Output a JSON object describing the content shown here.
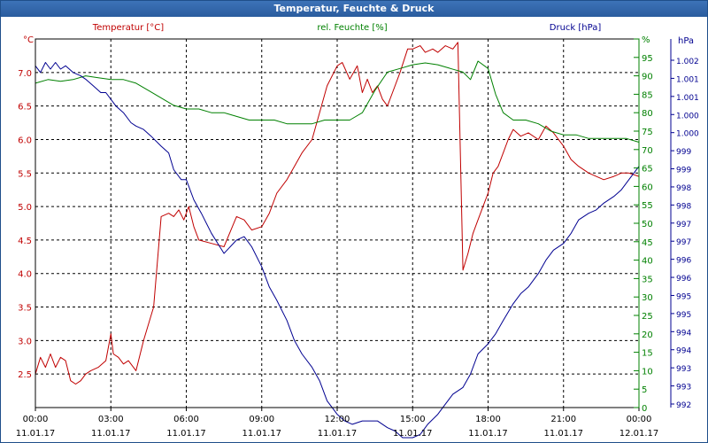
{
  "window": {
    "title": "Temperatur, Feuchte & Druck"
  },
  "colors": {
    "temperature": "#c00000",
    "humidity": "#008000",
    "pressure": "#000090",
    "axis": "#000000",
    "grid": "#000000"
  },
  "chart_data": {
    "type": "line",
    "title": "Temperatur, Feuchte & Druck",
    "grid": true,
    "x_ticks": [
      {
        "time": "00:00",
        "date": "11.01.17",
        "hour": 0
      },
      {
        "time": "03:00",
        "date": "11.01.17",
        "hour": 3
      },
      {
        "time": "06:00",
        "date": "11.01.17",
        "hour": 6
      },
      {
        "time": "09:00",
        "date": "11.01.17",
        "hour": 9
      },
      {
        "time": "12:00",
        "date": "11.01.17",
        "hour": 12
      },
      {
        "time": "15:00",
        "date": "11.01.17",
        "hour": 15
      },
      {
        "time": "18:00",
        "date": "11.01.17",
        "hour": 18
      },
      {
        "time": "21:00",
        "date": "11.01.17",
        "hour": 21
      },
      {
        "time": "00:00",
        "date": "12.01.17",
        "hour": 24
      }
    ],
    "xlim": [
      0,
      24
    ],
    "axes": {
      "temperature": {
        "label": "Temperatur [°C]",
        "unit": "°C",
        "ylim": [
          2.0,
          7.5
        ],
        "ticks": [
          "2.5",
          "3.0",
          "3.5",
          "4.0",
          "4.5",
          "5.0",
          "5.5",
          "6.0",
          "6.5",
          "7.0"
        ]
      },
      "humidity": {
        "label": "rel. Feuchte [%]",
        "unit": "%",
        "ylim": [
          0,
          100
        ],
        "ticks": [
          "0",
          "5",
          "10",
          "15",
          "20",
          "25",
          "30",
          "35",
          "40",
          "45",
          "50",
          "55",
          "60",
          "65",
          "70",
          "75",
          "80",
          "85",
          "90",
          "95",
          "%"
        ]
      },
      "pressure": {
        "label": "Druck [hPa]",
        "unit": "hPa",
        "ylim": [
          992,
          1003
        ],
        "ticks": [
          "992",
          "993",
          "993",
          "994",
          "994",
          "995",
          "995",
          "996",
          "996",
          "997",
          "997",
          "998",
          "998",
          "999",
          "999",
          "1.000",
          "1.000",
          "1.001",
          "1.001",
          "1.002"
        ]
      }
    },
    "series": [
      {
        "name": "Temperatur [°C]",
        "axis": "temperature",
        "color": "#c00000",
        "x": [
          0,
          0.2,
          0.4,
          0.6,
          0.8,
          1.0,
          1.2,
          1.4,
          1.6,
          1.8,
          2.0,
          2.2,
          2.5,
          2.8,
          3.0,
          3.1,
          3.3,
          3.5,
          3.7,
          4.0,
          4.3,
          4.7,
          5.0,
          5.3,
          5.5,
          5.7,
          5.9,
          6.1,
          6.3,
          6.5,
          7.0,
          7.5,
          8.0,
          8.3,
          8.6,
          9.0,
          9.3,
          9.6,
          10.0,
          10.3,
          10.6,
          11.0,
          11.3,
          11.6,
          12.0,
          12.2,
          12.5,
          12.8,
          13.0,
          13.2,
          13.4,
          13.6,
          13.8,
          14.0,
          14.2,
          14.5,
          14.8,
          15.0,
          15.3,
          15.5,
          15.8,
          16.0,
          16.3,
          16.6,
          16.8,
          17.0,
          17.2,
          17.4,
          17.6,
          17.8,
          18.0,
          18.2,
          18.4,
          18.6,
          18.8,
          19.0,
          19.3,
          19.6,
          20.0,
          20.3,
          20.6,
          21.0,
          21.3,
          21.6,
          22.0,
          22.3,
          22.6,
          23.0,
          23.3,
          23.6,
          24.0
        ],
        "y": [
          2.5,
          2.75,
          2.6,
          2.8,
          2.6,
          2.75,
          2.7,
          2.4,
          2.35,
          2.4,
          2.5,
          2.55,
          2.6,
          2.7,
          3.1,
          2.8,
          2.75,
          2.65,
          2.7,
          2.55,
          3.0,
          3.5,
          4.85,
          4.9,
          4.85,
          4.95,
          4.8,
          5.0,
          4.7,
          4.5,
          4.45,
          4.4,
          4.85,
          4.8,
          4.65,
          4.7,
          4.9,
          5.2,
          5.4,
          5.6,
          5.8,
          6.0,
          6.4,
          6.8,
          7.1,
          7.15,
          6.9,
          7.1,
          6.7,
          6.9,
          6.7,
          6.8,
          6.6,
          6.5,
          6.7,
          7.0,
          7.35,
          7.35,
          7.4,
          7.3,
          7.35,
          7.3,
          7.4,
          7.35,
          7.45,
          4.05,
          4.3,
          4.6,
          4.8,
          5.0,
          5.2,
          5.5,
          5.6,
          5.8,
          6.0,
          6.15,
          6.05,
          6.1,
          6.0,
          6.2,
          6.1,
          5.9,
          5.7,
          5.6,
          5.5,
          5.45,
          5.4,
          5.45,
          5.5,
          5.5,
          5.45
        ]
      },
      {
        "name": "rel. Feuchte [%]",
        "axis": "humidity",
        "color": "#008000",
        "x": [
          0,
          0.5,
          1.0,
          1.5,
          2.0,
          2.5,
          3.0,
          3.5,
          4.0,
          4.5,
          5.0,
          5.5,
          6.0,
          6.5,
          7.0,
          7.5,
          8.0,
          8.5,
          9.0,
          9.5,
          10.0,
          10.5,
          11.0,
          11.5,
          12.0,
          12.5,
          13.0,
          13.5,
          14.0,
          14.5,
          15.0,
          15.5,
          16.0,
          16.5,
          17.0,
          17.3,
          17.6,
          18.0,
          18.3,
          18.6,
          19.0,
          19.5,
          20.0,
          20.5,
          21.0,
          21.5,
          22.0,
          22.5,
          23.0,
          23.5,
          24.0
        ],
        "y": [
          88,
          89,
          88.5,
          89,
          90,
          89.5,
          89,
          89,
          88,
          86,
          84,
          82,
          81,
          81,
          80,
          80,
          79,
          78,
          78,
          78,
          77,
          77,
          77,
          78,
          78,
          78,
          80,
          86,
          91,
          92,
          93,
          93.5,
          93,
          92,
          91,
          89,
          94,
          92,
          85,
          80,
          78,
          78,
          77,
          75,
          74,
          74,
          73,
          73,
          73,
          73,
          72
        ]
      },
      {
        "name": "Druck [hPa]",
        "axis": "pressure",
        "color": "#000090",
        "x": [
          0,
          0.2,
          0.4,
          0.6,
          0.8,
          1.0,
          1.2,
          1.5,
          1.8,
          2.0,
          2.3,
          2.6,
          2.8,
          3.0,
          3.2,
          3.5,
          3.8,
          4.0,
          4.3,
          4.6,
          5.0,
          5.3,
          5.5,
          5.8,
          6.0,
          6.3,
          6.6,
          7.0,
          7.5,
          8.0,
          8.3,
          8.6,
          9.0,
          9.3,
          9.6,
          10.0,
          10.3,
          10.6,
          11.0,
          11.3,
          11.6,
          12.0,
          12.3,
          12.6,
          13.0,
          13.3,
          13.6,
          14.0,
          14.3,
          14.6,
          15.0,
          15.3,
          15.6,
          16.0,
          16.3,
          16.6,
          17.0,
          17.3,
          17.6,
          18.0,
          18.3,
          18.6,
          19.0,
          19.3,
          19.6,
          20.0,
          20.3,
          20.6,
          21.0,
          21.3,
          21.6,
          22.0,
          22.3,
          22.6,
          23.0,
          23.3,
          23.6,
          24.0
        ],
        "y": [
          1002.2,
          1002.0,
          1002.3,
          1002.1,
          1002.3,
          1002.1,
          1002.2,
          1002.0,
          1001.9,
          1001.8,
          1001.6,
          1001.4,
          1001.4,
          1001.2,
          1001.0,
          1000.8,
          1000.5,
          1000.4,
          1000.3,
          1000.1,
          999.8,
          999.6,
          999.1,
          998.8,
          998.8,
          998.2,
          997.8,
          997.2,
          996.6,
          997.0,
          997.1,
          996.8,
          996.2,
          995.6,
          995.2,
          994.6,
          994.0,
          993.6,
          993.2,
          992.8,
          992.2,
          991.8,
          991.6,
          991.5,
          991.6,
          991.6,
          991.6,
          991.4,
          991.3,
          991.1,
          991.1,
          991.2,
          991.5,
          991.8,
          992.1,
          992.4,
          992.6,
          993.0,
          993.6,
          993.9,
          994.2,
          994.6,
          995.1,
          995.4,
          995.6,
          996.0,
          996.4,
          996.7,
          996.9,
          997.2,
          997.6,
          997.8,
          997.9,
          998.1,
          998.3,
          998.5,
          998.8,
          999.2
        ]
      }
    ]
  }
}
